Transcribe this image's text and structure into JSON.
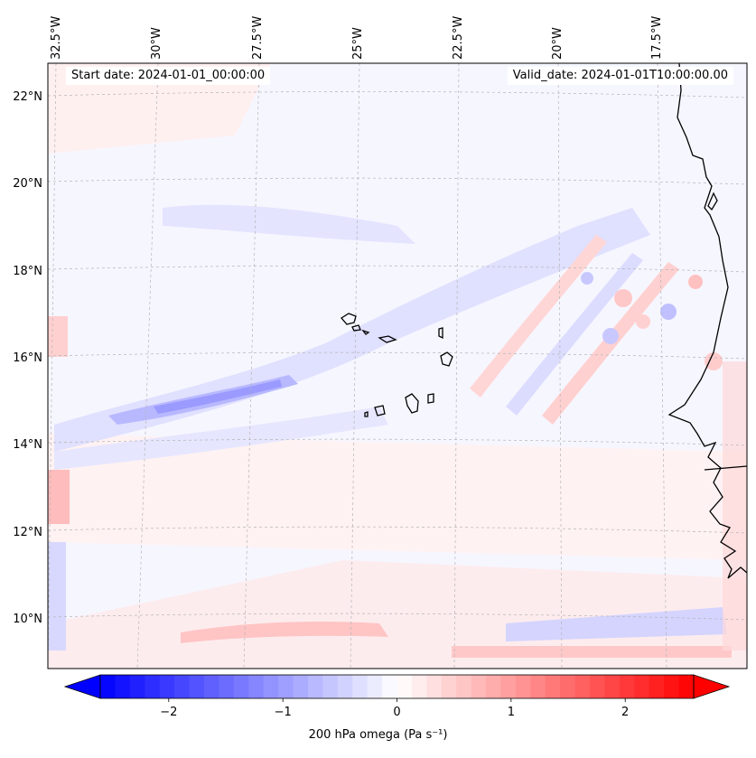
{
  "header": {
    "start_date": "Start date: 2024-01-01_00:00:00",
    "valid_date": "Valid_date: 2024-01-01T10:00:00.00"
  },
  "map": {
    "lon_labels": [
      "32.5°W",
      "30°W",
      "27.5°W",
      "25°W",
      "22.5°W",
      "20°W",
      "17.5°W"
    ],
    "lat_labels": [
      "22°N",
      "20°N",
      "18°N",
      "16°N",
      "14°N",
      "12°N",
      "10°N"
    ],
    "gridlines": "dashed",
    "coastline_color": "#000000"
  },
  "colorbar": {
    "label": "200 hPa omega (Pa s⁻¹)",
    "ticks": [
      "−2",
      "−1",
      "0",
      "1",
      "2"
    ],
    "tick_values": [
      -2,
      -1,
      0,
      1,
      2
    ],
    "vmin": -2.6,
    "vmax": 2.6,
    "cmap": "bwr",
    "extend": "both",
    "low_color": "#0000ff",
    "mid_color": "#ffffff",
    "high_color": "#ff0000"
  }
}
